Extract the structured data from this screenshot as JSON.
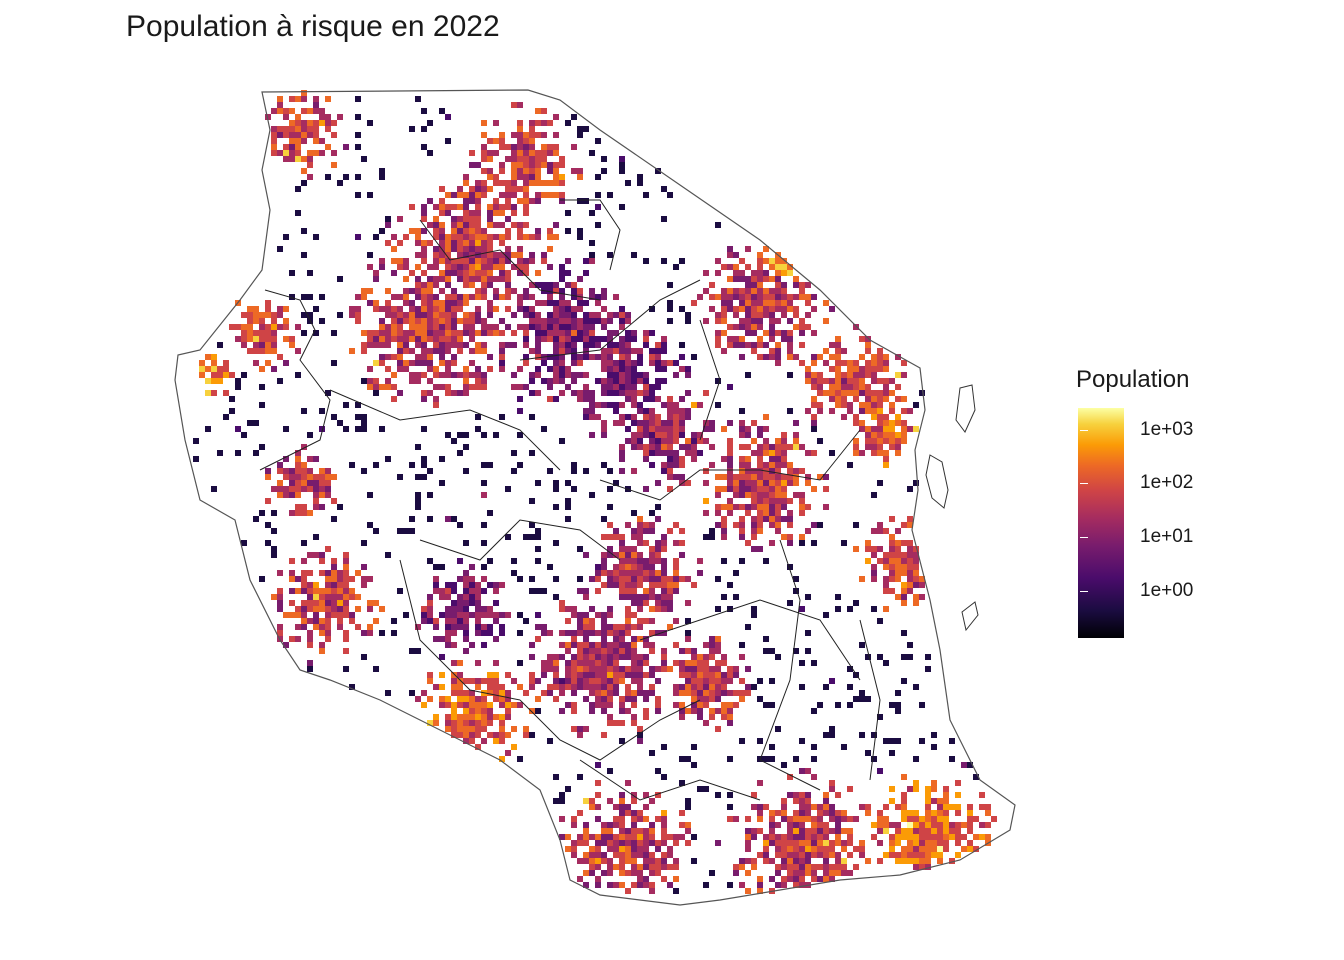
{
  "title": "Population à risque en 2022",
  "legend": {
    "title": "Population",
    "ticks": [
      "1e+03",
      "1e+02",
      "1e+01",
      "1e+00"
    ],
    "scale": "log10",
    "palette": [
      "#000004",
      "#1b0c41",
      "#4a0c6b",
      "#781c6d",
      "#a52c60",
      "#cf4446",
      "#ed6925",
      "#fb9b06",
      "#f7d13d",
      "#fcffa4"
    ]
  },
  "map": {
    "country": "Tanzania",
    "border_color": "#333333",
    "background": "#ffffff"
  }
}
